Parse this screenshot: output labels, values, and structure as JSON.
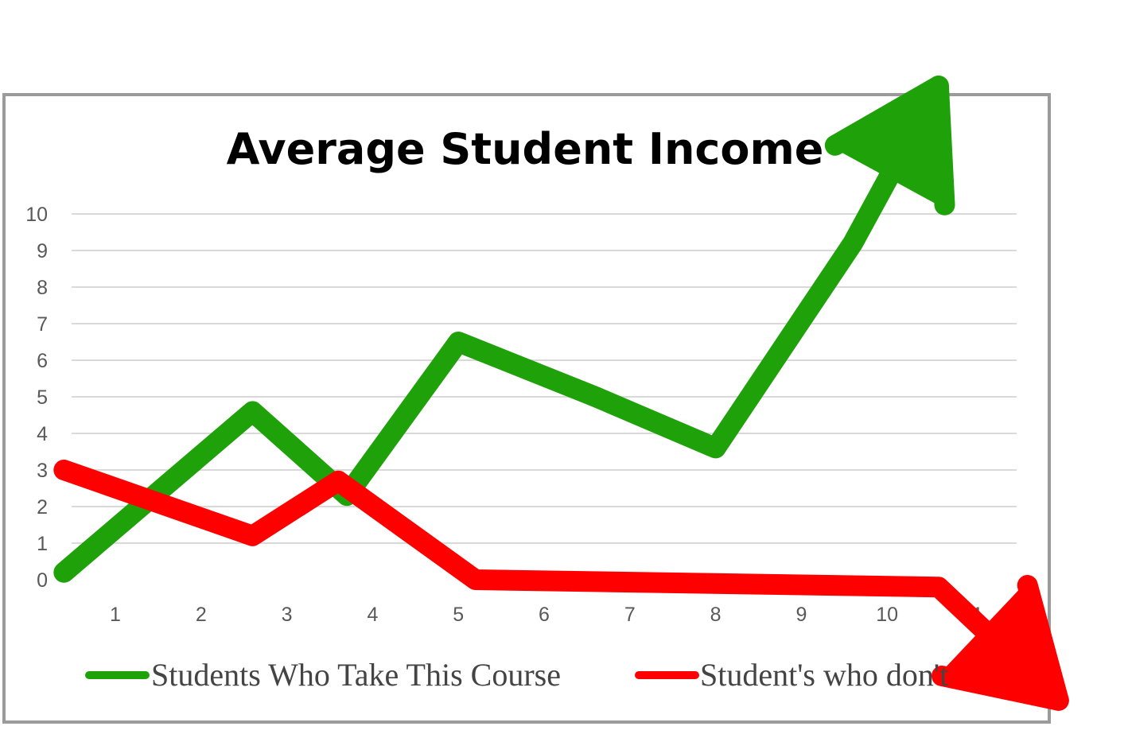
{
  "chart_data": {
    "type": "line",
    "title": "Average Student Income",
    "xlabel": "",
    "ylabel": "",
    "categories": [
      "1",
      "2",
      "3",
      "4",
      "5",
      "6",
      "7",
      "8",
      "9",
      "10",
      "11"
    ],
    "ylim": [
      0,
      10
    ],
    "yticks": [
      "0",
      "1",
      "2",
      "3",
      "4",
      "5",
      "6",
      "7",
      "8",
      "9",
      "10"
    ],
    "grid": true,
    "legend_position": "bottom",
    "series": [
      {
        "name": "Students Who Take This Course",
        "color": "#1fa10a",
        "values": [
          0.2,
          2.4,
          4.6,
          2.3,
          6.5,
          5.0,
          3.6,
          9.2,
          13.5
        ],
        "x": [
          0.4,
          1.5,
          2.6,
          3.7,
          5.0,
          6.6,
          8.0,
          9.6,
          10.6
        ],
        "annotation": "arrow-up"
      },
      {
        "name": "Student's who don't",
        "color": "#ff0000",
        "values": [
          3.0,
          1.2,
          2.7,
          0.0,
          -0.2,
          -3.3
        ],
        "x": [
          0.4,
          2.6,
          3.6,
          5.2,
          10.6,
          12.0
        ],
        "annotation": "arrow-down"
      }
    ]
  }
}
